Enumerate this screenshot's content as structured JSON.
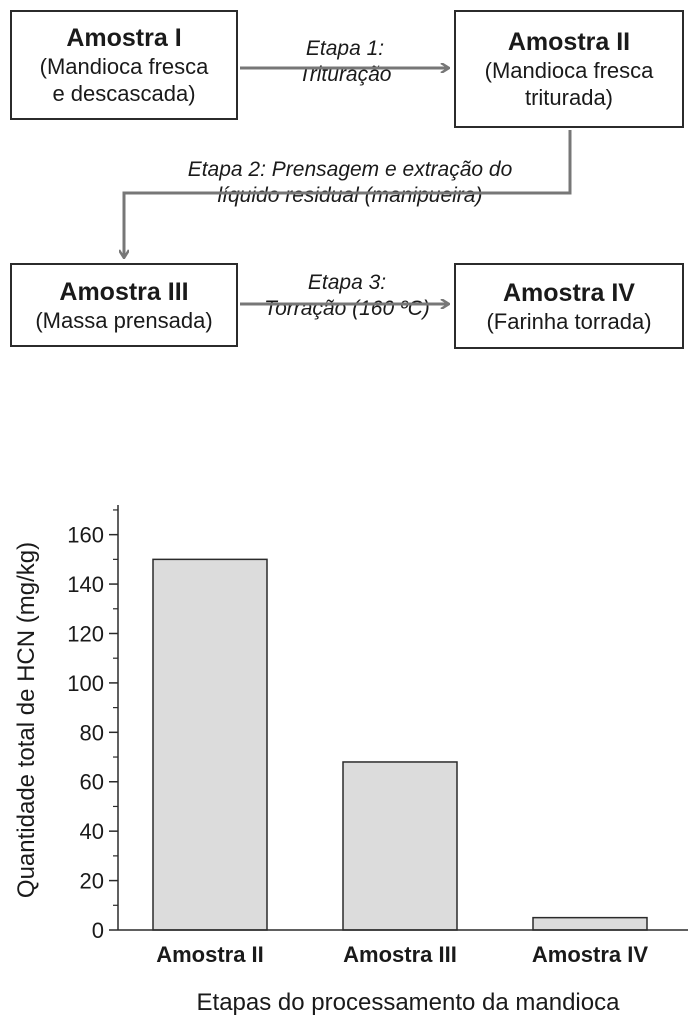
{
  "diagram": {
    "boxes": [
      {
        "title": "Amostra I",
        "desc": "(Mandioca fresca\ne descascada)"
      },
      {
        "title": "Amostra II",
        "desc": "(Mandioca fresca\ntriturada)"
      },
      {
        "title": "Amostra III",
        "desc": "(Massa prensada)"
      },
      {
        "title": "Amostra IV",
        "desc": "(Farinha torrada)"
      }
    ],
    "steps": [
      {
        "line1": "Etapa 1:",
        "line2": "Trituração"
      },
      {
        "line1": "Etapa 2: Prensagem e extração do",
        "line2": "líquido residual (manipueira)"
      },
      {
        "line1": "Etapa 3:",
        "line2": "Torração (160 ºC)"
      }
    ]
  },
  "chart_data": {
    "type": "bar",
    "categories": [
      "Amostra II",
      "Amostra III",
      "Amostra IV"
    ],
    "values": [
      150,
      68,
      5
    ],
    "xlabel": "Etapas do processamento da mandioca",
    "ylabel": "Quantidade total de HCN (mg/kg)",
    "ylim": [
      0,
      172
    ],
    "yticks": [
      0,
      20,
      40,
      60,
      80,
      100,
      120,
      140,
      160
    ],
    "ytick_labels": [
      "0",
      "20",
      "40",
      "60",
      "80",
      "100",
      "120",
      "140",
      "160"
    ],
    "minor_ticks": true,
    "grid": false,
    "bar_color": "#dcdcdc",
    "edge_color": "#2b2b2b"
  }
}
